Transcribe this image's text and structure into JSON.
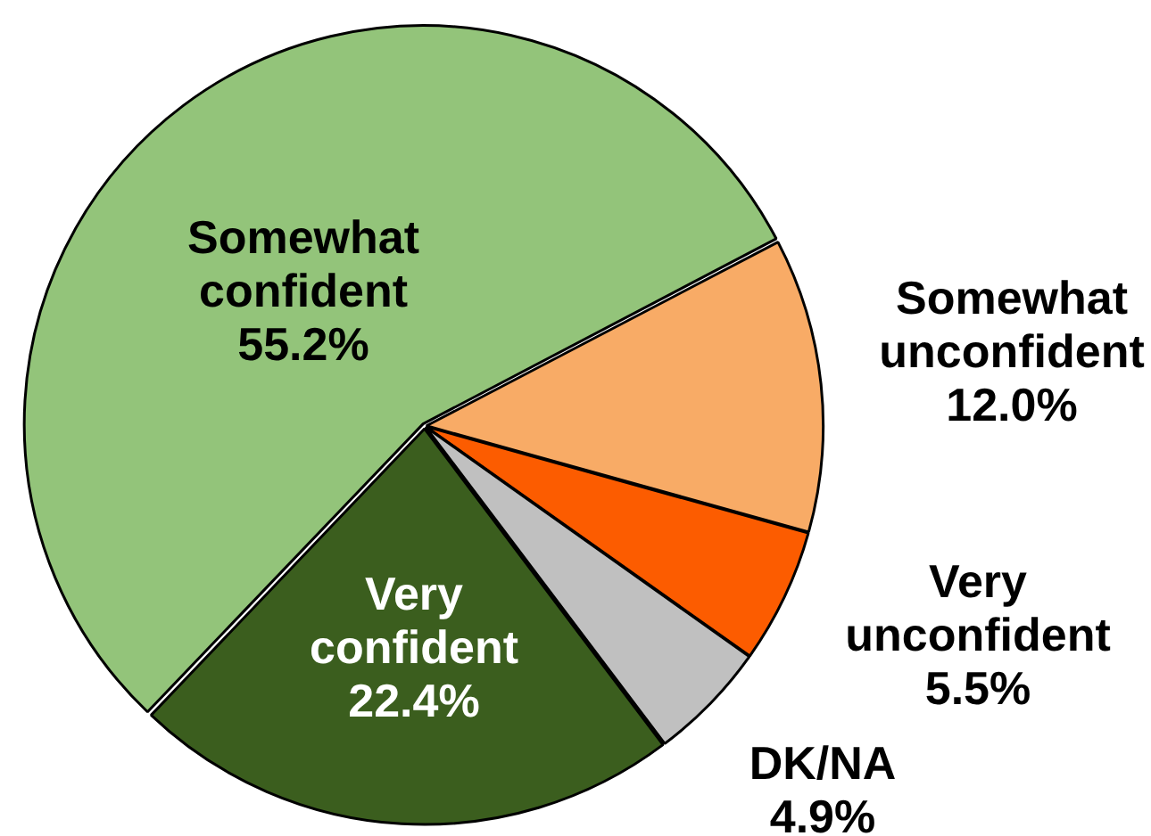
{
  "chart_data": {
    "type": "pie",
    "categories": [
      "Very confident",
      "Somewhat confident",
      "Somewhat unconfident",
      "Very unconfident",
      "DK/NA"
    ],
    "values": [
      22.4,
      55.2,
      12.0,
      5.5,
      4.9
    ],
    "colors": [
      "#3b5e1e",
      "#93c47a",
      "#f8ab66",
      "#fc5c00",
      "#c0c0c0"
    ],
    "value_labels": [
      "22.4%",
      "55.2%",
      "12.0%",
      "5.5%",
      "4.9%"
    ]
  }
}
